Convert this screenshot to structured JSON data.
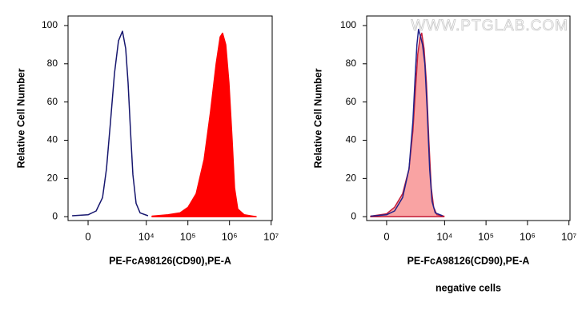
{
  "chart_data": [
    {
      "type": "histogram",
      "xscale": "biexponential",
      "x_label": "PE-FcA98126(CD90),PE-A",
      "y_label": "Relative Cell Number",
      "xlim": [
        -1080,
        10600000
      ],
      "ylim": [
        -2,
        105
      ],
      "xticks": [
        0,
        {
          "value": 10000,
          "label": "10⁴"
        },
        {
          "value": 100000,
          "label": "10⁵"
        },
        {
          "value": 1000000,
          "label": "10⁶"
        },
        {
          "value": 10000000,
          "label": "10⁷"
        }
      ],
      "yticks": [
        0,
        20,
        40,
        60,
        80,
        100
      ],
      "series": [
        {
          "color": "#16166e",
          "filled": false,
          "x": [
            -800,
            0,
            370,
            710,
            960,
            1270,
            1630,
            2080,
            2620,
            3150,
            3620,
            4140,
            4740,
            5670,
            7100,
            11000
          ],
          "values": [
            0.5,
            1,
            3,
            10,
            25,
            50,
            75,
            92,
            97,
            88,
            70,
            45,
            22,
            7,
            2,
            0.5
          ]
        },
        {
          "color": "#ff0000",
          "fill": "#ff0000",
          "filled": true,
          "x": [
            13800,
            33500,
            65100,
            101400,
            158000,
            246000,
            350000,
            478000,
            596000,
            681000,
            813000,
            970000,
            1158000,
            1322000,
            1578000,
            2250000,
            4370000
          ],
          "values": [
            0.3,
            1,
            2,
            5,
            12,
            30,
            55,
            80,
            94,
            96,
            90,
            70,
            40,
            15,
            4,
            1,
            0
          ]
        }
      ]
    },
    {
      "type": "histogram",
      "xscale": "biexponential",
      "x_label": "PE-FcA98126(CD90),PE-A",
      "y_label": "Relative Cell Number",
      "annotation": "negative cells",
      "watermark": "WWW.PTGLAB.COM",
      "xlim": [
        -1080,
        10600000
      ],
      "ylim": [
        -2,
        105
      ],
      "xticks": [
        0,
        {
          "value": 10000,
          "label": "10⁴"
        },
        {
          "value": 100000,
          "label": "10⁵"
        },
        {
          "value": 1000000,
          "label": "10⁶"
        },
        {
          "value": 10000000,
          "label": "10⁷"
        }
      ],
      "yticks": [
        0,
        20,
        40,
        60,
        80,
        100
      ],
      "series": [
        {
          "color": "#c4203c",
          "fill": "#f9a3a3",
          "filled": true,
          "x": [
            -805,
            0,
            366,
            805,
            1274,
            1634,
            1888,
            2177,
            2506,
            2752,
            3152,
            3616,
            4144,
            4744,
            5424,
            6488,
            9680
          ],
          "values": [
            0.3,
            1.5,
            5,
            12,
            25,
            45,
            65,
            85,
            94,
            96,
            88,
            70,
            40,
            15,
            5,
            1,
            0.3
          ]
        },
        {
          "color": "#22228a",
          "filled": false,
          "x": [
            -805,
            0,
            366,
            805,
            1274,
            1634,
            1888,
            2081,
            2284,
            2506,
            2882,
            3302,
            3784,
            4335,
            4960,
            5936,
            8864
          ],
          "values": [
            0.3,
            1,
            3,
            10,
            25,
            50,
            75,
            90,
            98,
            95,
            90,
            80,
            55,
            25,
            8,
            2,
            0.5
          ]
        }
      ]
    }
  ]
}
